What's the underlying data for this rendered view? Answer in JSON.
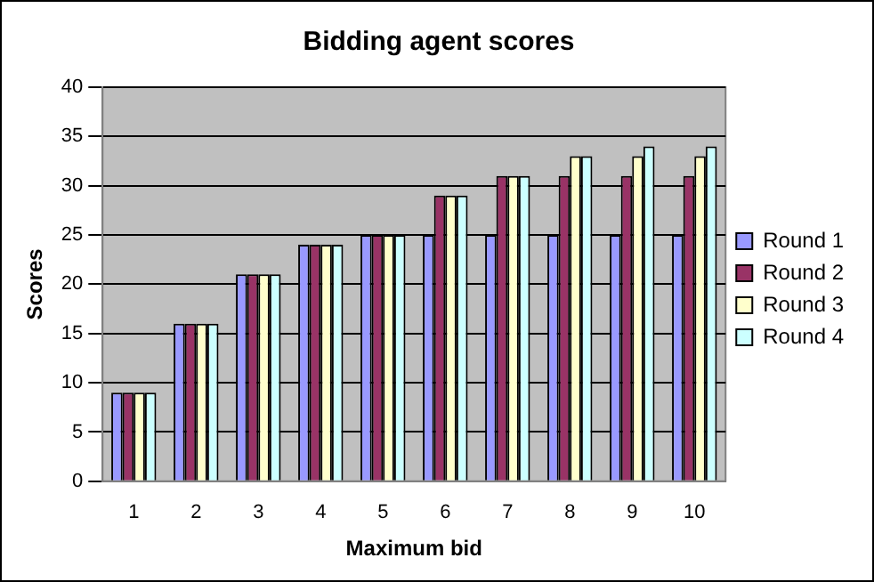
{
  "chart_data": {
    "type": "bar",
    "title": "Bidding agent scores",
    "xlabel": "Maximum bid",
    "ylabel": "Scores",
    "categories": [
      "1",
      "2",
      "3",
      "4",
      "5",
      "6",
      "7",
      "8",
      "9",
      "10"
    ],
    "series": [
      {
        "name": "Round 1",
        "color": "#9999ff",
        "values": [
          9,
          16,
          21,
          24,
          25,
          25,
          25,
          25,
          25,
          25
        ]
      },
      {
        "name": "Round 2",
        "color": "#993366",
        "values": [
          9,
          16,
          21,
          24,
          25,
          29,
          31,
          31,
          31,
          31
        ]
      },
      {
        "name": "Round 3",
        "color": "#ffffcc",
        "values": [
          9,
          16,
          21,
          24,
          25,
          29,
          31,
          33,
          33,
          33
        ]
      },
      {
        "name": "Round 4",
        "color": "#ccffff",
        "values": [
          9,
          16,
          21,
          24,
          25,
          29,
          31,
          33,
          34,
          34
        ]
      }
    ],
    "ylim": [
      0,
      40
    ],
    "yticks": [
      0,
      5,
      10,
      15,
      20,
      25,
      30,
      35,
      40
    ],
    "grid": "y",
    "legend": "right"
  }
}
